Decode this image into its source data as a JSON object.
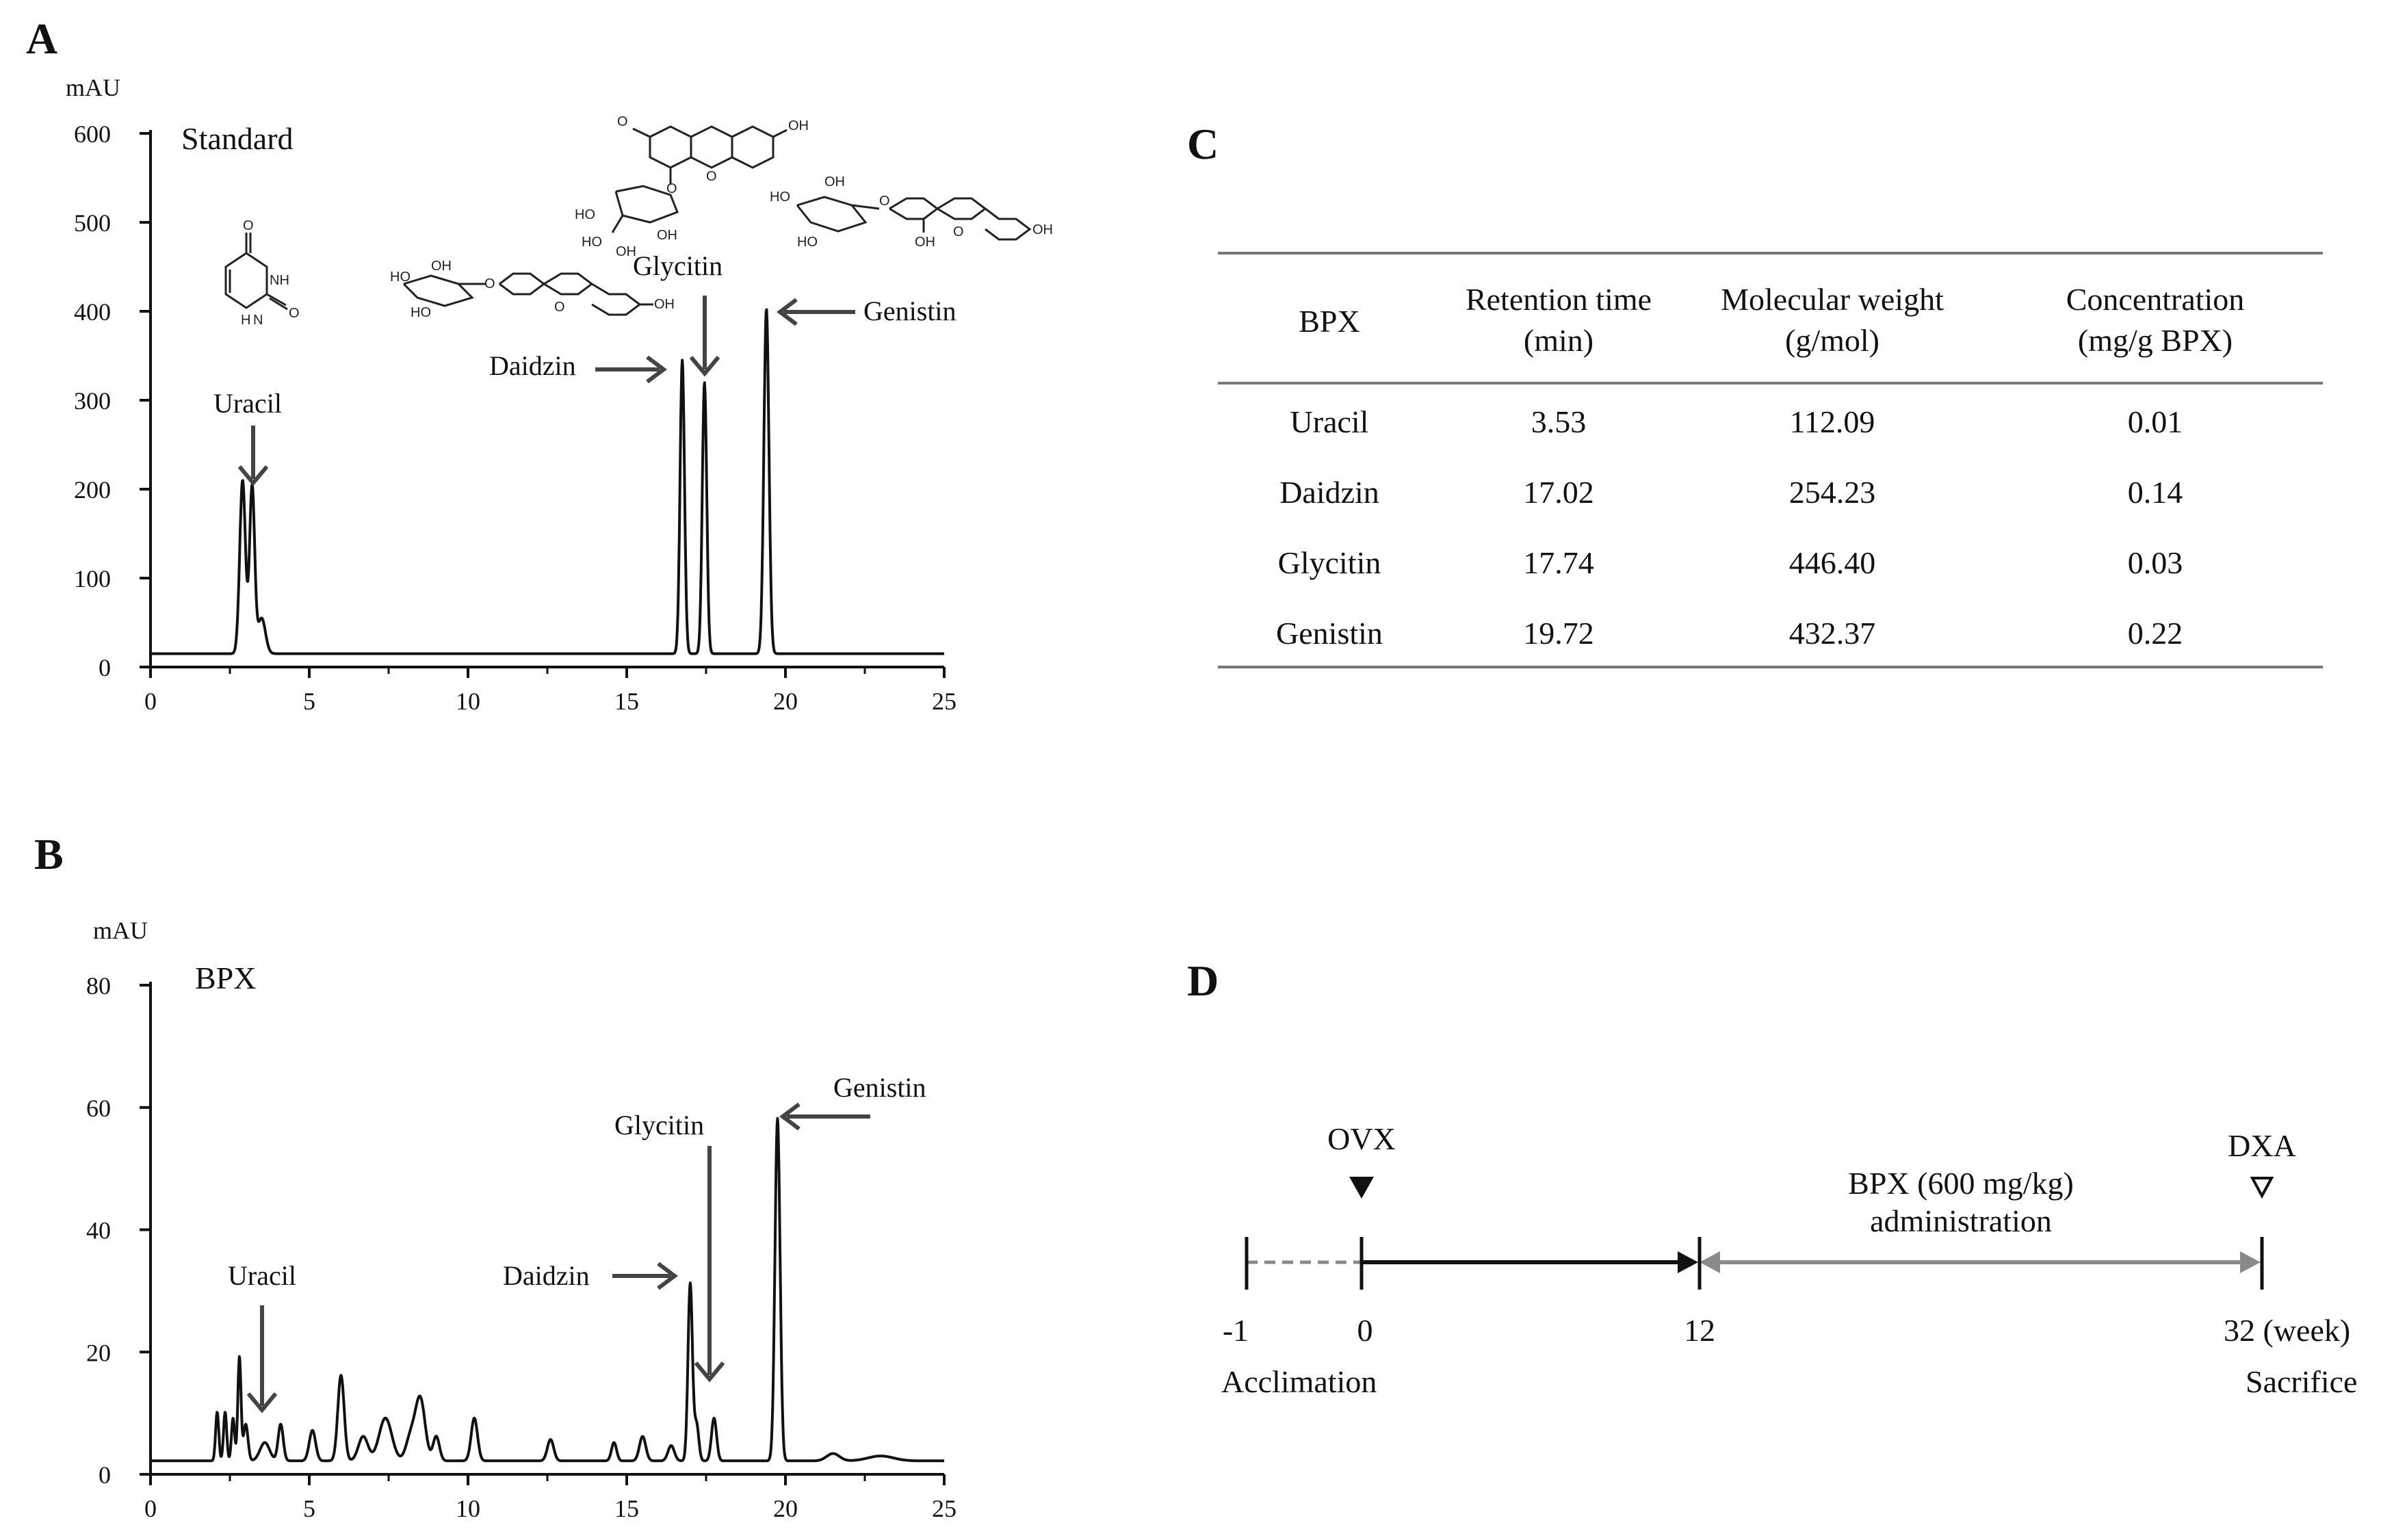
{
  "panels": {
    "a": "A",
    "b": "B",
    "c": "C",
    "d": "D"
  },
  "chart_data": [
    {
      "type": "line",
      "panel": "A",
      "title": "Standard",
      "ylabel": "mAU",
      "xlabel": "",
      "xlim": [
        0,
        25
      ],
      "ylim": [
        0,
        600
      ],
      "x_ticks": [
        "0",
        "5",
        "10",
        "15",
        "20",
        "25"
      ],
      "y_ticks": [
        "0",
        "100",
        "200",
        "300",
        "400",
        "500",
        "600"
      ],
      "grid": false,
      "baseline": 15,
      "peaks": [
        {
          "x": 2.9,
          "y": 195,
          "w": 0.09
        },
        {
          "x": 3.2,
          "y": 188,
          "w": 0.08
        },
        {
          "x": 3.5,
          "y": 40,
          "w": 0.12
        },
        {
          "x": 16.75,
          "y": 330,
          "w": 0.07
        },
        {
          "x": 17.45,
          "y": 305,
          "w": 0.07
        },
        {
          "x": 19.4,
          "y": 388,
          "w": 0.08
        }
      ],
      "annotations": [
        {
          "label": "Uracil",
          "x": 3.3,
          "y": 195
        },
        {
          "label": "Daidzin",
          "x": 16.75,
          "y": 330
        },
        {
          "label": "Glycitin",
          "x": 17.45,
          "y": 305
        },
        {
          "label": "Genistin",
          "x": 19.4,
          "y": 388
        }
      ]
    },
    {
      "type": "line",
      "panel": "B",
      "title": "BPX",
      "ylabel": "mAU",
      "xlabel": "",
      "xlim": [
        0,
        25
      ],
      "ylim": [
        0,
        80
      ],
      "x_ticks": [
        "0",
        "5",
        "10",
        "15",
        "20",
        "25"
      ],
      "y_ticks": [
        "0",
        "20",
        "40",
        "60",
        "80"
      ],
      "grid": false,
      "baseline": 2.2,
      "peaks": [
        {
          "x": 2.1,
          "y": 8,
          "w": 0.05
        },
        {
          "x": 2.35,
          "y": 8,
          "w": 0.05
        },
        {
          "x": 2.6,
          "y": 7,
          "w": 0.05
        },
        {
          "x": 2.8,
          "y": 17,
          "w": 0.05
        },
        {
          "x": 3.0,
          "y": 6,
          "w": 0.07
        },
        {
          "x": 3.6,
          "y": 3,
          "w": 0.15
        },
        {
          "x": 4.1,
          "y": 6,
          "w": 0.08
        },
        {
          "x": 5.1,
          "y": 5,
          "w": 0.1
        },
        {
          "x": 6.0,
          "y": 14,
          "w": 0.1
        },
        {
          "x": 6.7,
          "y": 4,
          "w": 0.15
        },
        {
          "x": 7.4,
          "y": 7,
          "w": 0.2
        },
        {
          "x": 8.2,
          "y": 4,
          "w": 0.15
        },
        {
          "x": 8.5,
          "y": 10,
          "w": 0.15
        },
        {
          "x": 9.0,
          "y": 4,
          "w": 0.1
        },
        {
          "x": 10.2,
          "y": 7,
          "w": 0.1
        },
        {
          "x": 12.6,
          "y": 3.5,
          "w": 0.1
        },
        {
          "x": 14.6,
          "y": 3,
          "w": 0.08
        },
        {
          "x": 15.5,
          "y": 4,
          "w": 0.1
        },
        {
          "x": 16.4,
          "y": 2.5,
          "w": 0.1
        },
        {
          "x": 17.0,
          "y": 29,
          "w": 0.07
        },
        {
          "x": 17.2,
          "y": 6,
          "w": 0.07
        },
        {
          "x": 17.75,
          "y": 7,
          "w": 0.08
        },
        {
          "x": 19.75,
          "y": 56,
          "w": 0.08
        },
        {
          "x": 21.5,
          "y": 1.2,
          "w": 0.2
        },
        {
          "x": 23.0,
          "y": 0.8,
          "w": 0.4
        }
      ],
      "annotations": [
        {
          "label": "Uracil",
          "x": 3.5,
          "y": 6
        },
        {
          "label": "Daidzin",
          "x": 17.0,
          "y": 31
        },
        {
          "label": "Glycitin",
          "x": 17.75,
          "y": 9
        },
        {
          "label": "Genistin",
          "x": 19.75,
          "y": 58
        }
      ]
    }
  ],
  "table": {
    "headers": [
      {
        "l1": "BPX",
        "l2": ""
      },
      {
        "l1": "Retention time",
        "l2": "(min)"
      },
      {
        "l1": "Molecular weight",
        "l2": "(g/mol)"
      },
      {
        "l1": "Concentration",
        "l2": "(mg/g BPX)"
      }
    ],
    "rows": [
      [
        "Uracil",
        "3.53",
        "112.09",
        "0.01"
      ],
      [
        "Daidzin",
        "17.02",
        "254.23",
        "0.14"
      ],
      [
        "Glycitin",
        "17.74",
        "446.40",
        "0.03"
      ],
      [
        "Genistin",
        "19.72",
        "432.37",
        "0.22"
      ]
    ]
  },
  "timeline": {
    "ticks": [
      "-1",
      "0",
      "12",
      "32 (week)"
    ],
    "below_labels": [
      "Acclimation",
      "Sacrifice"
    ],
    "event_ovx": "OVX",
    "event_dxa": "DXA",
    "bpx_line1": "BPX (600 mg/kg)",
    "bpx_line2": "administration",
    "colors": {
      "black": "#111111",
      "gray": "#8a8a8a"
    }
  },
  "chem_labels": {
    "oh": "OH",
    "o": "O",
    "nh": "NH",
    "h": "H",
    "n": "N",
    "ho": "HO"
  }
}
